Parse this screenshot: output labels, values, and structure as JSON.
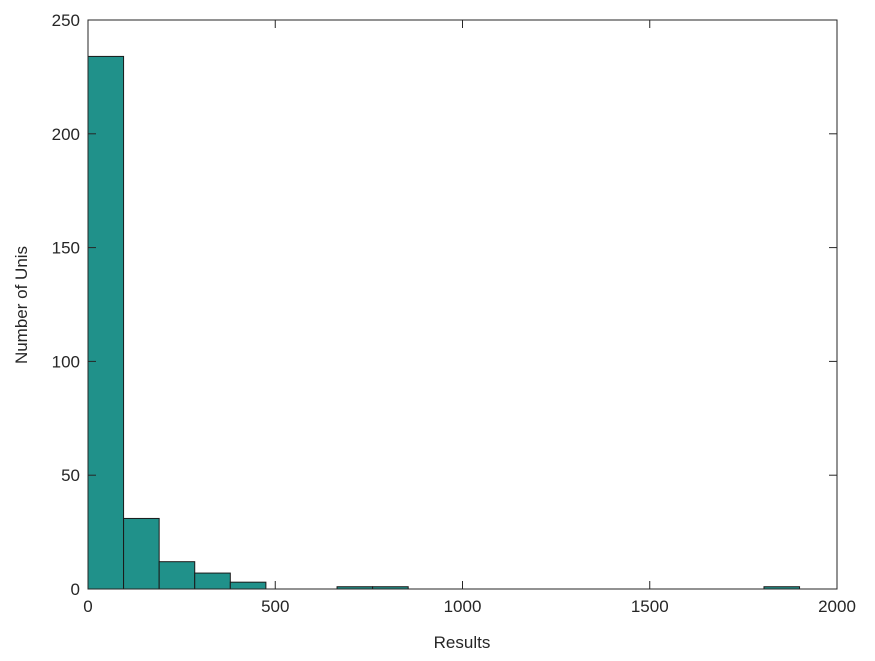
{
  "chart_data": {
    "type": "bar",
    "title": "",
    "xlabel": "Results",
    "ylabel": "Number of Unis",
    "xlim": [
      0,
      2000
    ],
    "ylim": [
      0,
      250
    ],
    "xticks": [
      0,
      500,
      1000,
      1500,
      2000
    ],
    "yticks": [
      0,
      50,
      100,
      150,
      200,
      250
    ],
    "grid": false,
    "bin_width": 95,
    "bin_start": 0,
    "values": [
      234,
      31,
      12,
      7,
      3,
      0,
      0,
      1,
      1,
      0,
      0,
      0,
      0,
      0,
      0,
      0,
      0,
      0,
      0,
      1
    ],
    "bar_color": "#20918a",
    "edge_color": "#1a1a1a"
  }
}
